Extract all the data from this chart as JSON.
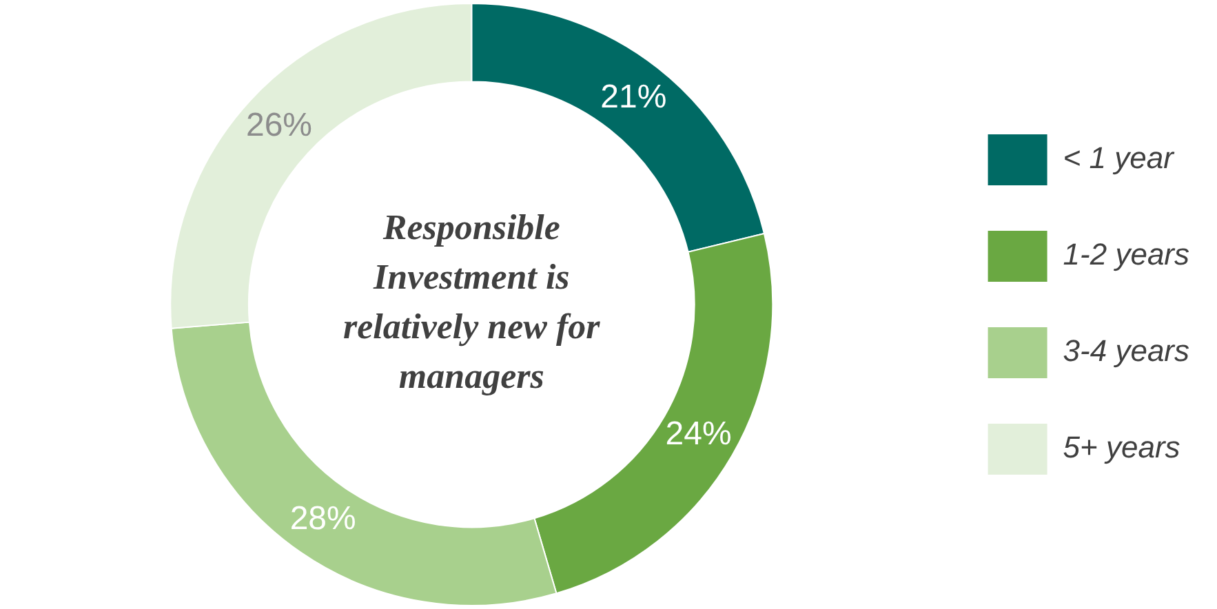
{
  "chart_data": {
    "type": "donut",
    "title": "Responsible Investment is relatively new for managers",
    "categories": [
      "< 1 year",
      "1-2 years",
      "3-4 years",
      "5+ years"
    ],
    "values": [
      21,
      24,
      28,
      26
    ],
    "colors": [
      "#006a64",
      "#6aa842",
      "#a8d08d",
      "#e2efda"
    ],
    "value_labels": [
      "21%",
      "24%",
      "28%",
      "26%"
    ],
    "legend": "right"
  }
}
